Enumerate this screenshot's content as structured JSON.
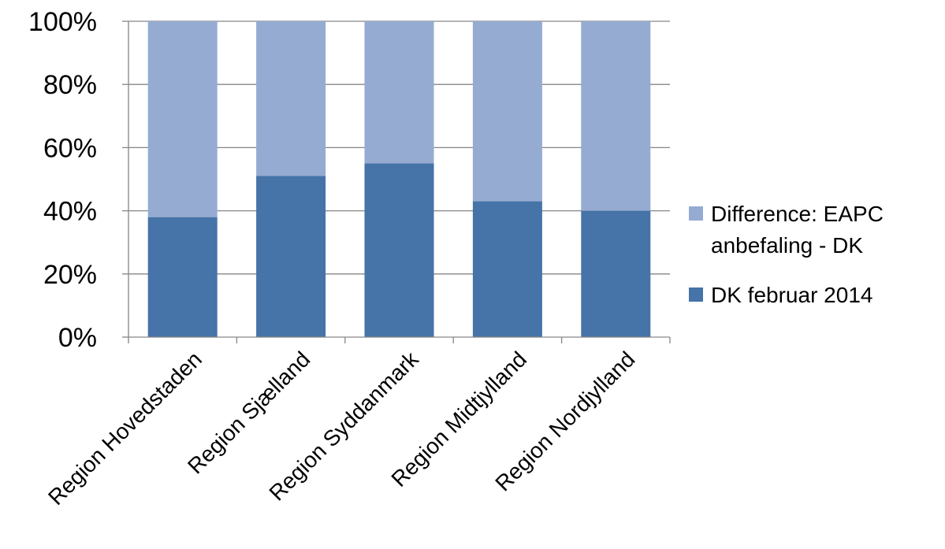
{
  "chart_data": {
    "type": "bar",
    "stacked": true,
    "percent_stacked": true,
    "title": "",
    "xlabel": "",
    "ylabel": "",
    "ylim": [
      0,
      100
    ],
    "yticks": [
      "0%",
      "20%",
      "40%",
      "60%",
      "80%",
      "100%"
    ],
    "grid": true,
    "legend_position": "right",
    "categories": [
      "Region Hovedstaden",
      "Region Sjælland",
      "Region Syddanmark",
      "Region Midtjylland",
      "Region Nordjylland"
    ],
    "series": [
      {
        "name": "DK februar 2014",
        "color": "#4673A8",
        "values": [
          38,
          51,
          55,
          43,
          40
        ]
      },
      {
        "name": "Difference: EAPC anbefaling - DK",
        "color": "#95ABD2",
        "values": [
          62,
          49,
          45,
          57,
          60
        ]
      }
    ],
    "legend": [
      {
        "lines": [
          "Difference: EAPC",
          "anbefaling - DK"
        ],
        "color": "#95ABD2"
      },
      {
        "lines": [
          "DK februar 2014"
        ],
        "color": "#4673A8"
      }
    ]
  }
}
